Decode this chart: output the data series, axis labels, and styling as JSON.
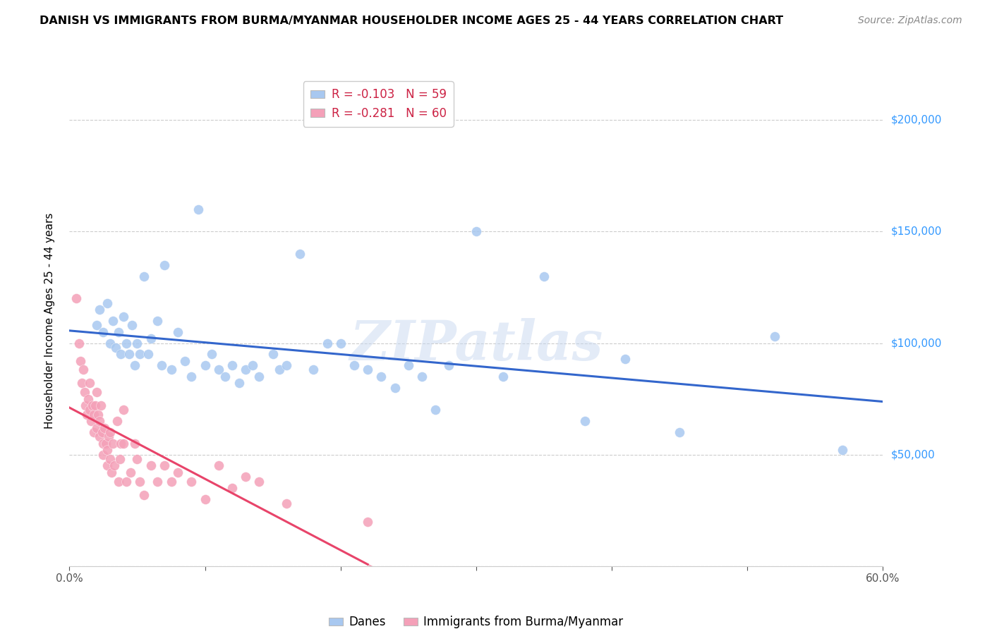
{
  "title": "DANISH VS IMMIGRANTS FROM BURMA/MYANMAR HOUSEHOLDER INCOME AGES 25 - 44 YEARS CORRELATION CHART",
  "source": "Source: ZipAtlas.com",
  "ylabel": "Householder Income Ages 25 - 44 years",
  "xlim": [
    0.0,
    0.6
  ],
  "ylim": [
    0,
    220000
  ],
  "yticks": [
    0,
    50000,
    100000,
    150000,
    200000
  ],
  "ytick_labels": [
    "",
    "$50,000",
    "$100,000",
    "$150,000",
    "$200,000"
  ],
  "xticks": [
    0.0,
    0.1,
    0.2,
    0.3,
    0.4,
    0.5,
    0.6
  ],
  "xtick_labels": [
    "0.0%",
    "",
    "",
    "",
    "",
    "",
    "60.0%"
  ],
  "danes_R": -0.103,
  "danes_N": 59,
  "burma_R": -0.281,
  "burma_N": 60,
  "danes_color": "#a8c8f0",
  "burma_color": "#f4a0b8",
  "danes_line_color": "#3366cc",
  "burma_line_color": "#e8446a",
  "watermark": "ZIPatlas",
  "danes_x": [
    0.02,
    0.022,
    0.025,
    0.028,
    0.03,
    0.032,
    0.034,
    0.036,
    0.038,
    0.04,
    0.042,
    0.044,
    0.046,
    0.048,
    0.05,
    0.052,
    0.055,
    0.058,
    0.06,
    0.065,
    0.068,
    0.07,
    0.075,
    0.08,
    0.085,
    0.09,
    0.095,
    0.1,
    0.105,
    0.11,
    0.115,
    0.12,
    0.125,
    0.13,
    0.135,
    0.14,
    0.15,
    0.155,
    0.16,
    0.17,
    0.18,
    0.19,
    0.2,
    0.21,
    0.22,
    0.23,
    0.24,
    0.25,
    0.26,
    0.27,
    0.28,
    0.3,
    0.32,
    0.35,
    0.38,
    0.41,
    0.45,
    0.52,
    0.57
  ],
  "danes_y": [
    108000,
    115000,
    105000,
    118000,
    100000,
    110000,
    98000,
    105000,
    95000,
    112000,
    100000,
    95000,
    108000,
    90000,
    100000,
    95000,
    130000,
    95000,
    102000,
    110000,
    90000,
    135000,
    88000,
    105000,
    92000,
    85000,
    160000,
    90000,
    95000,
    88000,
    85000,
    90000,
    82000,
    88000,
    90000,
    85000,
    95000,
    88000,
    90000,
    140000,
    88000,
    100000,
    100000,
    90000,
    88000,
    85000,
    80000,
    90000,
    85000,
    70000,
    90000,
    150000,
    85000,
    130000,
    65000,
    93000,
    60000,
    103000,
    52000
  ],
  "burma_x": [
    0.005,
    0.007,
    0.008,
    0.009,
    0.01,
    0.011,
    0.012,
    0.013,
    0.014,
    0.015,
    0.015,
    0.016,
    0.017,
    0.018,
    0.018,
    0.019,
    0.02,
    0.02,
    0.021,
    0.022,
    0.022,
    0.023,
    0.024,
    0.025,
    0.025,
    0.026,
    0.027,
    0.028,
    0.028,
    0.029,
    0.03,
    0.03,
    0.031,
    0.032,
    0.033,
    0.035,
    0.036,
    0.037,
    0.038,
    0.04,
    0.04,
    0.042,
    0.045,
    0.048,
    0.05,
    0.052,
    0.055,
    0.06,
    0.065,
    0.07,
    0.075,
    0.08,
    0.09,
    0.1,
    0.11,
    0.12,
    0.13,
    0.14,
    0.16,
    0.22
  ],
  "burma_y": [
    120000,
    100000,
    92000,
    82000,
    88000,
    78000,
    72000,
    68000,
    75000,
    82000,
    70000,
    65000,
    72000,
    68000,
    60000,
    72000,
    78000,
    62000,
    68000,
    58000,
    65000,
    72000,
    60000,
    55000,
    50000,
    62000,
    55000,
    52000,
    45000,
    58000,
    60000,
    48000,
    42000,
    55000,
    45000,
    65000,
    38000,
    48000,
    55000,
    70000,
    55000,
    38000,
    42000,
    55000,
    48000,
    38000,
    32000,
    45000,
    38000,
    45000,
    38000,
    42000,
    38000,
    30000,
    45000,
    35000,
    40000,
    38000,
    28000,
    20000
  ]
}
